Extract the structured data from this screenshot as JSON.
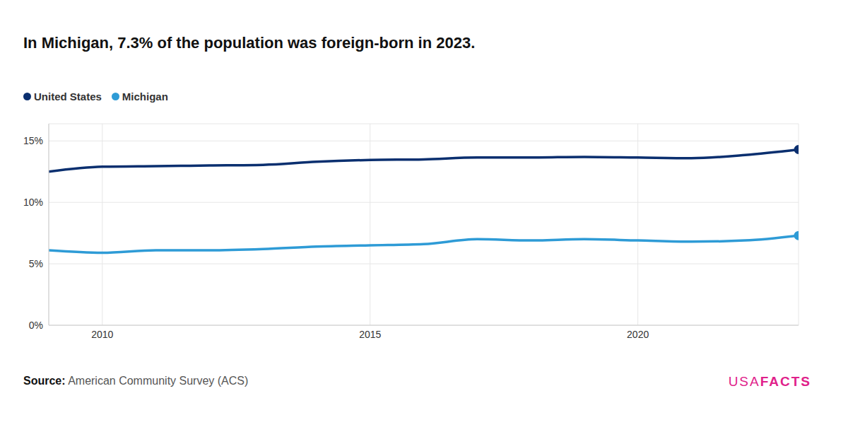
{
  "chart_data": {
    "type": "line",
    "title": "In Michigan, 7.3% of the population was foreign-born in 2023.",
    "x": [
      2009,
      2010,
      2011,
      2012,
      2013,
      2014,
      2015,
      2016,
      2017,
      2018,
      2019,
      2020,
      2021,
      2022,
      2023
    ],
    "series": [
      {
        "name": "United States",
        "color": "#0a2f6f",
        "marker": "end",
        "values": [
          12.5,
          12.9,
          12.95,
          13.0,
          13.05,
          13.3,
          13.45,
          13.5,
          13.65,
          13.65,
          13.7,
          13.65,
          13.6,
          13.85,
          14.3
        ]
      },
      {
        "name": "Michigan",
        "color": "#2e9bd6",
        "marker": "end",
        "values": [
          6.1,
          5.9,
          6.1,
          6.1,
          6.2,
          6.4,
          6.5,
          6.6,
          7.0,
          6.9,
          7.0,
          6.9,
          6.8,
          6.9,
          7.3
        ]
      }
    ],
    "xlim": [
      2009,
      2023
    ],
    "xticks": [
      2010,
      2015,
      2020
    ],
    "ylim": [
      0,
      16.4
    ],
    "yticks": [
      {
        "value": 0,
        "label": "0%"
      },
      {
        "value": 5,
        "label": "5%"
      },
      {
        "value": 10,
        "label": "10%"
      },
      {
        "value": 15,
        "label": "15%"
      }
    ],
    "grid": true,
    "legend": "top-left",
    "source_label": "Source:",
    "source": "American Community Survey (ACS)",
    "logo": [
      "USA",
      "FACTS"
    ]
  }
}
